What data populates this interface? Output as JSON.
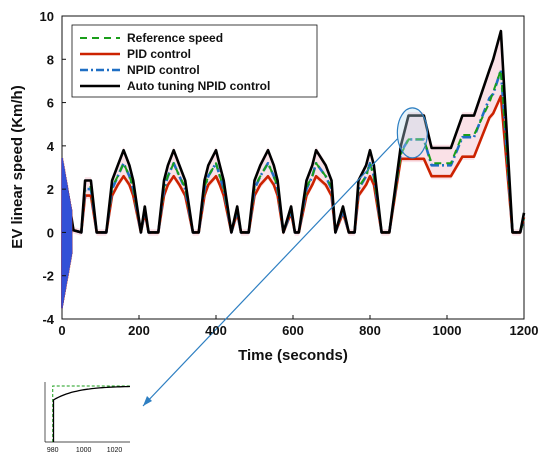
{
  "chart_data": {
    "type": "line",
    "title": "",
    "xlabel": "Time (seconds)",
    "ylabel": "EV linear speed (Km/h)",
    "xlim": [
      0,
      1200
    ],
    "ylim": [
      -4,
      10
    ],
    "xticks": [
      0,
      200,
      400,
      600,
      800,
      1000,
      1200
    ],
    "yticks": [
      -4,
      -2,
      0,
      2,
      4,
      6,
      8,
      10
    ],
    "grid": false,
    "legend_position": "top-left",
    "colors": {
      "reference": "#1a9e1a",
      "pid": "#cc2200",
      "npid": "#1f6fc4",
      "auto": "#000000",
      "annotation": "#2e7fc2",
      "initial_transient": "#2255ee"
    },
    "series": [
      {
        "name": "Reference speed",
        "style": "dashed",
        "x": [
          0,
          10,
          20,
          30,
          50,
          60,
          75,
          90,
          115,
          130,
          145,
          160,
          175,
          185,
          205,
          215,
          225,
          250,
          265,
          275,
          290,
          305,
          320,
          340,
          355,
          370,
          380,
          400,
          410,
          420,
          440,
          455,
          465,
          485,
          500,
          515,
          535,
          550,
          560,
          575,
          595,
          605,
          615,
          635,
          650,
          660,
          685,
          700,
          710,
          730,
          745,
          760,
          770,
          790,
          800,
          810,
          830,
          850,
          880,
          900,
          940,
          960,
          1010,
          1040,
          1070,
          1110,
          1120,
          1140,
          1170,
          1190,
          1200
        ],
        "y": [
          0,
          0,
          0.2,
          0.1,
          0,
          2.1,
          2.1,
          0,
          0,
          2.1,
          2.6,
          3.2,
          2.6,
          2.1,
          0,
          1.1,
          0,
          0,
          2.1,
          2.6,
          3.2,
          2.6,
          2.1,
          0,
          0,
          2.1,
          2.6,
          3.2,
          2.6,
          2.1,
          0,
          1.1,
          0,
          0,
          2.1,
          2.6,
          3.2,
          2.6,
          2.1,
          0,
          1.1,
          0,
          0,
          2.1,
          2.6,
          3.2,
          2.6,
          2.1,
          0,
          1.1,
          0,
          0,
          2.1,
          2.6,
          3.2,
          2.6,
          0,
          0,
          3.6,
          4.3,
          4.3,
          3.2,
          3.2,
          4.5,
          4.5,
          6.0,
          6.5,
          7.5,
          0,
          0,
          0.6
        ],
        "note": "reference partially hidden behind NPID/auto traces"
      },
      {
        "name": "PID control",
        "style": "solid",
        "x": [
          0,
          10,
          20,
          30,
          50,
          60,
          75,
          90,
          115,
          130,
          145,
          160,
          175,
          185,
          205,
          215,
          225,
          250,
          265,
          275,
          290,
          305,
          320,
          340,
          355,
          370,
          380,
          400,
          410,
          420,
          440,
          455,
          465,
          485,
          500,
          515,
          535,
          550,
          560,
          575,
          595,
          605,
          615,
          635,
          650,
          660,
          685,
          700,
          710,
          730,
          745,
          760,
          770,
          790,
          800,
          810,
          830,
          850,
          880,
          900,
          940,
          960,
          1010,
          1040,
          1070,
          1110,
          1120,
          1140,
          1170,
          1190,
          1200
        ],
        "y": [
          0,
          0,
          0.2,
          0.1,
          0,
          1.7,
          1.7,
          0,
          0,
          1.7,
          2.2,
          2.6,
          2.2,
          1.7,
          0,
          0.9,
          0,
          0,
          1.7,
          2.2,
          2.6,
          2.2,
          1.7,
          0,
          0,
          1.7,
          2.2,
          2.6,
          2.2,
          1.7,
          0,
          0.9,
          0,
          0,
          1.7,
          2.2,
          2.6,
          2.2,
          1.7,
          0,
          0.9,
          0,
          0,
          1.7,
          2.2,
          2.6,
          2.2,
          1.7,
          0,
          0.9,
          0,
          0,
          1.7,
          2.2,
          2.6,
          2.2,
          0,
          0,
          3.4,
          3.4,
          3.4,
          2.6,
          2.6,
          3.5,
          3.5,
          5.3,
          5.5,
          6.3,
          0,
          0,
          0.7
        ]
      },
      {
        "name": "NPID control",
        "style": "dash-dot",
        "x": [
          0,
          10,
          20,
          30,
          50,
          60,
          75,
          90,
          115,
          130,
          145,
          160,
          175,
          185,
          205,
          215,
          225,
          250,
          265,
          275,
          290,
          305,
          320,
          340,
          355,
          370,
          380,
          400,
          410,
          420,
          440,
          455,
          465,
          485,
          500,
          515,
          535,
          550,
          560,
          575,
          595,
          605,
          615,
          635,
          650,
          660,
          685,
          700,
          710,
          730,
          745,
          760,
          770,
          790,
          800,
          810,
          830,
          850,
          880,
          900,
          940,
          960,
          1010,
          1040,
          1070,
          1110,
          1120,
          1140,
          1170,
          1190,
          1200
        ],
        "y": [
          0,
          0,
          0.2,
          0.1,
          0,
          2.0,
          2.0,
          0,
          0,
          2.0,
          2.6,
          3.2,
          2.6,
          2.0,
          0,
          1.0,
          0,
          0,
          2.0,
          2.6,
          3.2,
          2.6,
          2.0,
          0,
          0,
          2.0,
          2.6,
          3.2,
          2.6,
          2.0,
          0,
          1.0,
          0,
          0,
          2.0,
          2.6,
          3.2,
          2.6,
          2.0,
          0,
          1.0,
          0,
          0,
          2.0,
          2.6,
          3.2,
          2.6,
          2.0,
          0,
          1.0,
          0,
          0,
          2.0,
          2.6,
          3.2,
          2.6,
          0,
          0,
          3.7,
          4.3,
          4.3,
          3.1,
          3.1,
          4.4,
          4.4,
          6.2,
          6.4,
          7.5,
          0,
          0,
          0.7
        ]
      },
      {
        "name": "Auto tuning NPID control",
        "style": "solid",
        "x": [
          0,
          10,
          20,
          30,
          50,
          60,
          75,
          90,
          115,
          130,
          145,
          160,
          175,
          185,
          205,
          215,
          225,
          250,
          265,
          275,
          290,
          305,
          320,
          340,
          355,
          370,
          380,
          400,
          410,
          420,
          440,
          455,
          465,
          485,
          500,
          515,
          535,
          550,
          560,
          575,
          595,
          605,
          615,
          635,
          650,
          660,
          685,
          700,
          710,
          730,
          745,
          760,
          770,
          790,
          800,
          810,
          830,
          850,
          880,
          900,
          940,
          960,
          1010,
          1040,
          1070,
          1110,
          1120,
          1140,
          1170,
          1190,
          1200
        ],
        "y": [
          0,
          0,
          1.2,
          0.1,
          0,
          2.4,
          2.4,
          0,
          0,
          2.4,
          3.1,
          3.8,
          3.1,
          2.4,
          0,
          1.2,
          0,
          0,
          2.4,
          3.1,
          3.8,
          3.1,
          2.4,
          0,
          0,
          2.4,
          3.1,
          3.8,
          3.1,
          2.4,
          0,
          1.2,
          0,
          0,
          2.4,
          3.1,
          3.8,
          3.1,
          2.4,
          0,
          1.2,
          0,
          0,
          2.4,
          3.1,
          3.8,
          3.1,
          2.4,
          0,
          1.2,
          0,
          0,
          2.4,
          3.1,
          3.8,
          3.1,
          0,
          0,
          4.0,
          5.4,
          5.4,
          3.9,
          3.9,
          5.4,
          5.4,
          7.5,
          8.0,
          9.3,
          0,
          0,
          0.9
        ]
      }
    ],
    "initial_transient": {
      "x_range": [
        0,
        25
      ],
      "y_range": [
        -3.5,
        3.5
      ],
      "note": "oscillatory start-up region near t = 0"
    },
    "annotation": {
      "ellipse_center": [
        910,
        4.6
      ],
      "target_of_arrow": "inset zoom"
    },
    "inset": {
      "xticks": [
        980,
        1000,
        1020
      ],
      "xlim": [
        975,
        1030
      ],
      "reference_level": 1.0,
      "response_start": 0.75
    }
  }
}
